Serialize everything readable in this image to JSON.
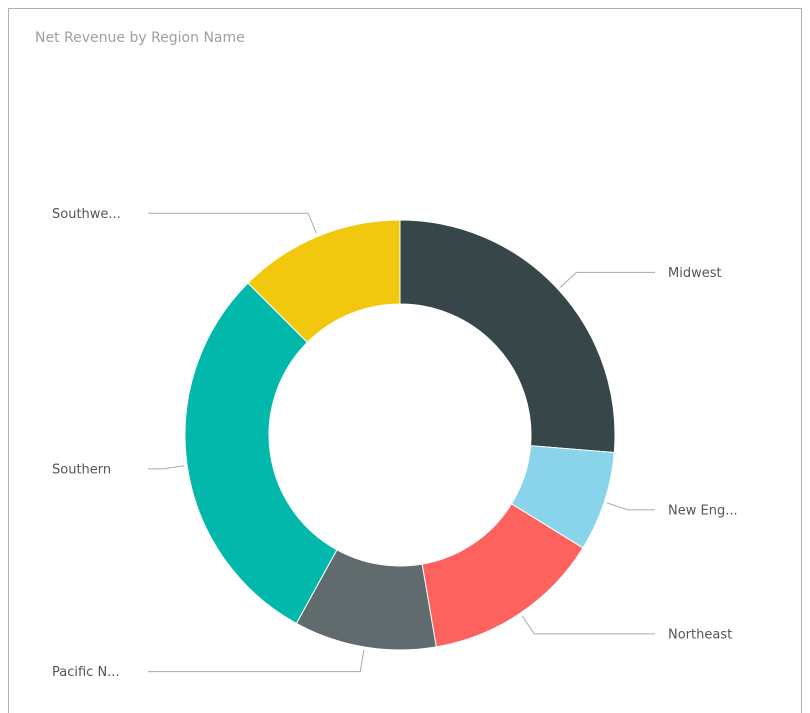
{
  "chart_data": {
    "type": "donut",
    "title": "Net Revenue by Region Name",
    "categories": [
      "Midwest",
      "New Eng...",
      "Northeast",
      "Pacific N...",
      "Southern",
      "Southwe..."
    ],
    "values": [
      26.3,
      7.5,
      13.5,
      10.7,
      29.5,
      12.5
    ],
    "colors": [
      "#374649",
      "#8AD4EB",
      "#FD625E",
      "#5F6B6D",
      "#01B8AA",
      "#F2C80F"
    ]
  }
}
